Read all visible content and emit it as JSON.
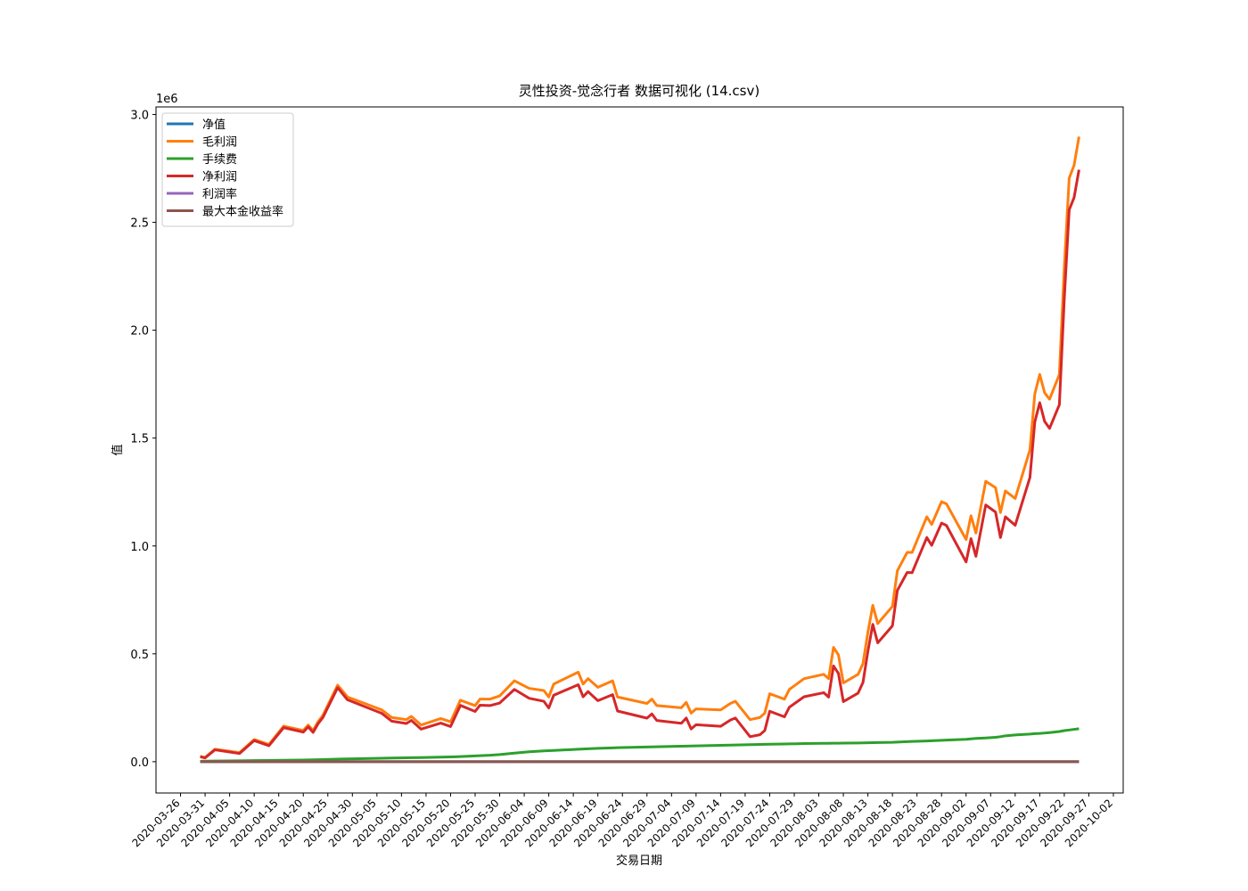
{
  "chart_data": {
    "type": "line",
    "title": "灵性投资-觉念行者 数据可视化 (14.csv)",
    "x_label": "交易日期",
    "y_label": "值",
    "y_offset_label": "1e6",
    "x": [
      "2020-03-30",
      "2020-03-31",
      "2020-04-02",
      "2020-04-07",
      "2020-04-10",
      "2020-04-13",
      "2020-04-16",
      "2020-04-20",
      "2020-04-21",
      "2020-04-22",
      "2020-04-23",
      "2020-04-24",
      "2020-04-27",
      "2020-04-29",
      "2020-05-06",
      "2020-05-08",
      "2020-05-11",
      "2020-05-12",
      "2020-05-14",
      "2020-05-18",
      "2020-05-20",
      "2020-05-22",
      "2020-05-25",
      "2020-05-26",
      "2020-05-28",
      "2020-05-30",
      "2020-06-02",
      "2020-06-05",
      "2020-06-08",
      "2020-06-09",
      "2020-06-10",
      "2020-06-15",
      "2020-06-16",
      "2020-06-17",
      "2020-06-19",
      "2020-06-22",
      "2020-06-23",
      "2020-06-29",
      "2020-06-30",
      "2020-07-01",
      "2020-07-06",
      "2020-07-07",
      "2020-07-08",
      "2020-07-09",
      "2020-07-14",
      "2020-07-16",
      "2020-07-17",
      "2020-07-20",
      "2020-07-22",
      "2020-07-23",
      "2020-07-24",
      "2020-07-27",
      "2020-07-28",
      "2020-07-31",
      "2020-08-04",
      "2020-08-05",
      "2020-08-06",
      "2020-08-07",
      "2020-08-08",
      "2020-08-11",
      "2020-08-12",
      "2020-08-13",
      "2020-08-14",
      "2020-08-15",
      "2020-08-18",
      "2020-08-19",
      "2020-08-21",
      "2020-08-22",
      "2020-08-25",
      "2020-08-26",
      "2020-08-28",
      "2020-08-29",
      "2020-09-02",
      "2020-09-03",
      "2020-09-04",
      "2020-09-06",
      "2020-09-08",
      "2020-09-09",
      "2020-09-10",
      "2020-09-12",
      "2020-09-15",
      "2020-09-16",
      "2020-09-17",
      "2020-09-18",
      "2020-09-19",
      "2020-09-21",
      "2020-09-22",
      "2020-09-23",
      "2020-09-24",
      "2020-09-25"
    ],
    "series": [
      {
        "name": "净值",
        "color": "#1f77b4",
        "values": [
          1,
          1,
          1,
          1,
          1,
          1,
          1,
          1,
          1,
          1,
          1,
          1,
          1,
          1,
          1,
          1,
          1,
          1,
          1,
          1,
          1,
          1,
          1,
          1,
          1,
          1,
          1,
          1,
          1,
          1,
          1,
          1,
          1,
          1,
          1,
          1,
          1,
          1,
          1,
          1,
          1,
          1,
          1,
          1,
          1,
          1,
          1,
          1,
          1,
          1,
          1,
          1,
          1,
          1,
          1,
          1,
          1,
          1,
          1,
          1,
          1,
          1,
          1,
          1,
          1,
          1,
          1,
          1,
          1,
          1,
          1,
          1,
          1,
          1,
          1,
          1,
          1,
          1,
          1,
          1,
          1,
          1,
          1,
          1,
          1,
          1,
          1,
          1,
          1,
          1
        ]
      },
      {
        "name": "毛利润",
        "color": "#ff7f0e",
        "values": [
          25000,
          20000,
          58000,
          42000,
          103000,
          80000,
          165000,
          145000,
          170000,
          145000,
          185000,
          215000,
          355000,
          300000,
          240000,
          205000,
          195000,
          210000,
          170000,
          200000,
          185000,
          285000,
          260000,
          290000,
          290000,
          305000,
          375000,
          340000,
          330000,
          300000,
          360000,
          415000,
          360000,
          385000,
          345000,
          375000,
          300000,
          270000,
          290000,
          260000,
          250000,
          275000,
          225000,
          245000,
          240000,
          270000,
          280000,
          195000,
          205000,
          225000,
          315000,
          290000,
          335000,
          385000,
          405000,
          385000,
          530000,
          495000,
          365000,
          405000,
          455000,
          600000,
          725000,
          640000,
          720000,
          885000,
          970000,
          970000,
          1135000,
          1100000,
          1205000,
          1195000,
          1030000,
          1140000,
          1060000,
          1300000,
          1270000,
          1155000,
          1255000,
          1220000,
          1445000,
          1705000,
          1795000,
          1710000,
          1680000,
          1795000,
          2290000,
          2705000,
          2765000,
          2897000
        ]
      },
      {
        "name": "手续费",
        "color": "#2ca02c",
        "values": [
          2000,
          2500,
          3000,
          4000,
          5000,
          6000,
          7000,
          8000,
          8500,
          9000,
          9500,
          10000,
          12000,
          13000,
          16000,
          17000,
          18000,
          18500,
          19000,
          21000,
          22000,
          24000,
          27000,
          28000,
          30000,
          33000,
          40000,
          46000,
          50000,
          51000,
          52000,
          58000,
          59000,
          60000,
          62000,
          64000,
          65000,
          68000,
          68500,
          69000,
          72000,
          72500,
          73000,
          73500,
          76000,
          77000,
          77500,
          79000,
          80000,
          80500,
          81000,
          82000,
          82500,
          84000,
          85000,
          85500,
          86000,
          86000,
          86500,
          87000,
          87500,
          88000,
          88500,
          89000,
          90000,
          91000,
          93000,
          94000,
          96000,
          97000,
          99000,
          100000,
          104000,
          106000,
          108000,
          110000,
          113000,
          116000,
          120000,
          124000,
          128000,
          130000,
          131000,
          133000,
          135000,
          140000,
          144000,
          147000,
          150000,
          153000
        ]
      },
      {
        "name": "净利润",
        "color": "#d62728",
        "values": [
          23000,
          17500,
          55000,
          38000,
          98000,
          74000,
          158000,
          137000,
          161500,
          136000,
          175500,
          205000,
          343000,
          287000,
          224000,
          188000,
          177000,
          191500,
          151000,
          179000,
          163000,
          261000,
          233000,
          262000,
          260000,
          272000,
          335000,
          294000,
          280000,
          249000,
          308000,
          357000,
          301000,
          325000,
          283000,
          311000,
          235000,
          202000,
          221500,
          191000,
          178000,
          202500,
          152000,
          171500,
          164000,
          193000,
          202500,
          116000,
          125000,
          144500,
          234000,
          208000,
          252500,
          301000,
          320000,
          299500,
          444000,
          409000,
          278500,
          318000,
          367500,
          512000,
          636500,
          551000,
          630000,
          794000,
          877000,
          876000,
          1039000,
          1003000,
          1106000,
          1095000,
          926000,
          1034000,
          952000,
          1190000,
          1157000,
          1039000,
          1135000,
          1096000,
          1317000,
          1575000,
          1664000,
          1577000,
          1545000,
          1655000,
          2146000,
          2558000,
          2615000,
          2744000
        ]
      },
      {
        "name": "利润率",
        "color": "#9467bd",
        "values": [
          0.9,
          0.9,
          0.9,
          0.9,
          0.9,
          0.9,
          0.9,
          0.9,
          0.9,
          0.9,
          0.9,
          0.9,
          0.9,
          0.9,
          0.9,
          0.9,
          0.9,
          0.9,
          0.9,
          0.9,
          0.9,
          0.9,
          0.9,
          0.9,
          0.9,
          0.9,
          0.9,
          0.9,
          0.9,
          0.9,
          0.9,
          0.9,
          0.9,
          0.9,
          0.9,
          0.9,
          0.9,
          0.9,
          0.9,
          0.9,
          0.9,
          0.9,
          0.9,
          0.9,
          0.9,
          0.9,
          0.9,
          0.9,
          0.9,
          0.9,
          0.9,
          0.9,
          0.9,
          0.9,
          0.9,
          0.9,
          0.9,
          0.9,
          0.9,
          0.9,
          0.9,
          0.9,
          0.9,
          0.9,
          0.9,
          0.9,
          0.9,
          0.9,
          0.9,
          0.9,
          0.9,
          0.9,
          0.9,
          0.9,
          0.9,
          0.9,
          0.9,
          0.9,
          0.9,
          0.9,
          0.9,
          0.9,
          0.9,
          0.9,
          0.9,
          0.9,
          0.9,
          0.9,
          0.9,
          0.9
        ]
      },
      {
        "name": "最大本金收益率",
        "color": "#8c564b",
        "values": [
          0,
          0,
          0,
          0,
          0,
          0,
          0,
          0,
          0,
          0,
          0,
          0,
          0,
          0,
          0,
          0,
          0,
          0,
          0,
          0,
          0,
          0,
          0,
          0,
          0,
          0,
          0,
          0,
          0,
          0,
          0,
          0,
          0,
          0,
          0,
          0,
          0,
          0,
          0,
          0,
          0,
          0,
          0,
          0,
          0,
          0,
          0,
          0,
          0,
          0,
          0,
          0,
          0,
          0,
          0,
          0,
          0,
          0,
          0,
          0,
          0,
          0,
          0,
          0,
          0,
          0,
          0,
          0,
          0,
          0,
          0,
          0,
          0,
          0,
          0,
          0,
          0,
          0,
          0,
          0,
          0,
          0,
          0,
          0,
          0,
          0,
          0,
          0,
          0,
          0
        ]
      }
    ],
    "xlim": [
      "2020-03-21",
      "2020-10-04"
    ],
    "xticks": [
      "2020-03-26",
      "2020-03-31",
      "2020-04-05",
      "2020-04-10",
      "2020-04-15",
      "2020-04-20",
      "2020-04-25",
      "2020-04-30",
      "2020-05-05",
      "2020-05-10",
      "2020-05-15",
      "2020-05-20",
      "2020-05-25",
      "2020-05-30",
      "2020-06-04",
      "2020-06-09",
      "2020-06-14",
      "2020-06-19",
      "2020-06-24",
      "2020-06-29",
      "2020-07-04",
      "2020-07-09",
      "2020-07-14",
      "2020-07-19",
      "2020-07-24",
      "2020-07-29",
      "2020-08-03",
      "2020-08-08",
      "2020-08-13",
      "2020-08-18",
      "2020-08-23",
      "2020-08-28",
      "2020-09-02",
      "2020-09-07",
      "2020-09-12",
      "2020-09-17",
      "2020-09-22",
      "2020-09-27",
      "2020-10-02"
    ],
    "ylim": [
      -145000,
      3035000
    ],
    "yticks": [
      {
        "value": 0,
        "label": "0.0"
      },
      {
        "value": 500000,
        "label": "0.5"
      },
      {
        "value": 1000000,
        "label": "1.0"
      },
      {
        "value": 1500000,
        "label": "1.5"
      },
      {
        "value": 2000000,
        "label": "2.0"
      },
      {
        "value": 2500000,
        "label": "2.5"
      },
      {
        "value": 3000000,
        "label": "3.0"
      }
    ],
    "grid": false,
    "legend": "upper left"
  }
}
